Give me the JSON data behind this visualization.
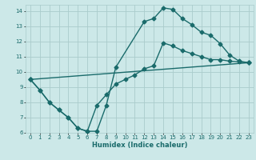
{
  "xlabel": "Humidex (Indice chaleur)",
  "xlim": [
    -0.5,
    23.5
  ],
  "ylim": [
    6,
    14.4
  ],
  "xticks": [
    0,
    1,
    2,
    3,
    4,
    5,
    6,
    7,
    8,
    9,
    10,
    11,
    12,
    13,
    14,
    15,
    16,
    17,
    18,
    19,
    20,
    21,
    22,
    23
  ],
  "yticks": [
    6,
    7,
    8,
    9,
    10,
    11,
    12,
    13,
    14
  ],
  "background_color": "#cce8e8",
  "grid_color": "#aacccc",
  "line_color": "#1a6b6b",
  "line1_x": [
    0,
    1,
    2,
    3,
    4,
    5,
    6,
    7,
    8,
    9,
    12,
    13,
    14,
    15,
    16,
    17,
    18,
    19,
    20,
    21,
    22,
    23
  ],
  "line1_y": [
    9.5,
    8.8,
    8.0,
    7.5,
    7.0,
    6.3,
    6.1,
    6.1,
    7.8,
    10.3,
    13.3,
    13.5,
    14.2,
    14.1,
    13.5,
    13.1,
    12.6,
    12.4,
    11.85,
    11.1,
    10.7,
    10.6
  ],
  "line2_x": [
    0,
    1,
    2,
    3,
    4,
    5,
    6,
    7,
    8,
    9,
    10,
    11,
    12,
    13,
    14,
    15,
    16,
    17,
    18,
    19,
    20,
    21,
    22,
    23
  ],
  "line2_y": [
    9.5,
    8.8,
    8.0,
    7.5,
    7.0,
    6.3,
    6.1,
    7.8,
    8.5,
    9.2,
    9.5,
    9.8,
    10.2,
    10.4,
    11.9,
    11.7,
    11.4,
    11.2,
    11.0,
    10.8,
    10.8,
    10.7,
    10.65,
    10.6
  ],
  "line3_x": [
    0,
    23
  ],
  "line3_y": [
    9.5,
    10.6
  ],
  "marker_size": 2.5,
  "line_width": 1.0
}
